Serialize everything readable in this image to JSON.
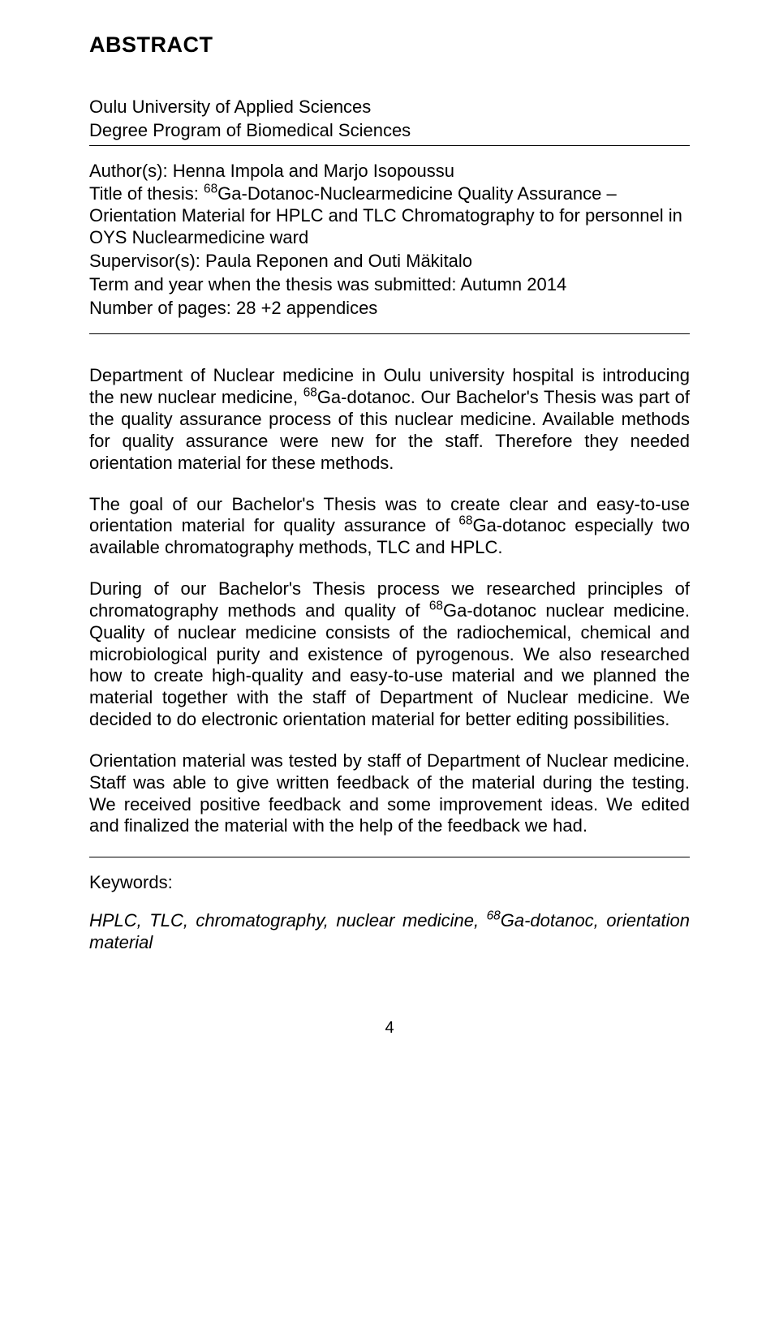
{
  "heading": "ABSTRACT",
  "institution_line1": "Oulu University of Applied Sciences",
  "institution_line2": "Degree Program of Biomedical Sciences",
  "authors_label": "Author(s): ",
  "authors": "Henna Impola and Marjo Isopoussu",
  "title_label": "Title of thesis: ",
  "title_pre": "",
  "title_sup": "68",
  "title_post": "Ga-Dotanoc-Nuclearmedicine Quality Assurance – Orientation Material for HPLC and TLC Chromatography to for personnel in OYS Nuclearmedicine ward",
  "supervisors_label": "Supervisor(s): ",
  "supervisors": "Paula Reponen and Outi Mäkitalo",
  "term_label": "Term and year when the thesis was submitted: ",
  "term": "Autumn 2014",
  "pages_label": "Number of pages: ",
  "pages": "28 +2 appendices",
  "p1_a": "Department of Nuclear medicine in Oulu university hospital is introducing the new nuclear medicine, ",
  "p1_sup": "68",
  "p1_b": "Ga-dotanoc. Our Bachelor's Thesis was part of the quality assurance process of this nuclear medicine. Available methods for quality assurance were new for the staff. Therefore they needed orientation material for these methods.",
  "p2_a": "The goal of our Bachelor's Thesis was to create clear and easy-to-use orientation material for quality assurance of ",
  "p2_sup": "68",
  "p2_b": "Ga-dotanoc especially two available chromatography methods, TLC and HPLC.",
  "p3_a": "During of our Bachelor's Thesis process we researched principles of chromatography methods and quality of ",
  "p3_sup": "68",
  "p3_b": "Ga-dotanoc nuclear medicine. Quality of nuclear medicine consists of the radiochemical, chemical and microbiological purity and existence of pyrogenous. We also researched how to create high-quality and easy-to-use material and we planned the material together with the staff of Department of Nuclear medicine. We decided to do electronic orientation material for better editing possibilities.",
  "p4": "Orientation material was tested by staff of Department of Nuclear medicine. Staff was able to give written feedback of the material during the testing. We received positive feedback and some improvement ideas. We edited and finalized the material with the help of the feedback we had.",
  "keywords_label": "Keywords:",
  "keywords_a": "HPLC, TLC, chromatography, nuclear medicine, ",
  "keywords_sup": "68",
  "keywords_b": "Ga-dotanoc, orientation material",
  "page_number": "4"
}
